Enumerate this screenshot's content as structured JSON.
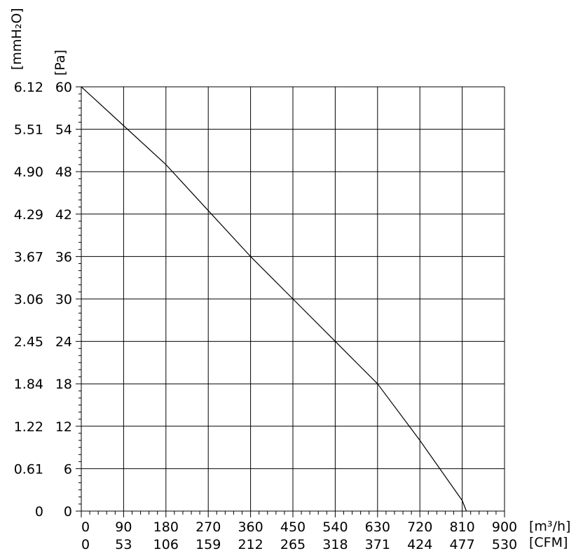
{
  "chart_data": {
    "type": "line",
    "title": "",
    "x_axis": {
      "primary_unit": "[m³/h]",
      "secondary_unit": "[CFM]",
      "range": [
        0,
        900
      ],
      "ticks_primary": [
        "0",
        "90",
        "180",
        "270",
        "360",
        "450",
        "540",
        "630",
        "720",
        "810",
        "900"
      ],
      "ticks_secondary": [
        "0",
        "53",
        "106",
        "159",
        "212",
        "265",
        "318",
        "371",
        "424",
        "477",
        "530"
      ]
    },
    "y_axis": {
      "primary_unit": "[Pa]",
      "secondary_unit": "[mmH₂O]",
      "range": [
        0,
        60
      ],
      "ticks_primary": [
        "0",
        "6",
        "12",
        "18",
        "24",
        "30",
        "36",
        "42",
        "48",
        "54",
        "60"
      ],
      "ticks_secondary": [
        "0",
        "0.61",
        "1.22",
        "1.84",
        "2.45",
        "3.06",
        "3.67",
        "4.29",
        "4.90",
        "5.51",
        "6.12"
      ]
    },
    "grid": true,
    "series": [
      {
        "x": [
          0,
          90,
          180,
          270,
          360,
          450,
          540,
          630,
          720,
          810,
          819
        ],
        "y": [
          60,
          54.5,
          49,
          42.5,
          36,
          30,
          24,
          18,
          10,
          1.5,
          0
        ]
      }
    ]
  }
}
